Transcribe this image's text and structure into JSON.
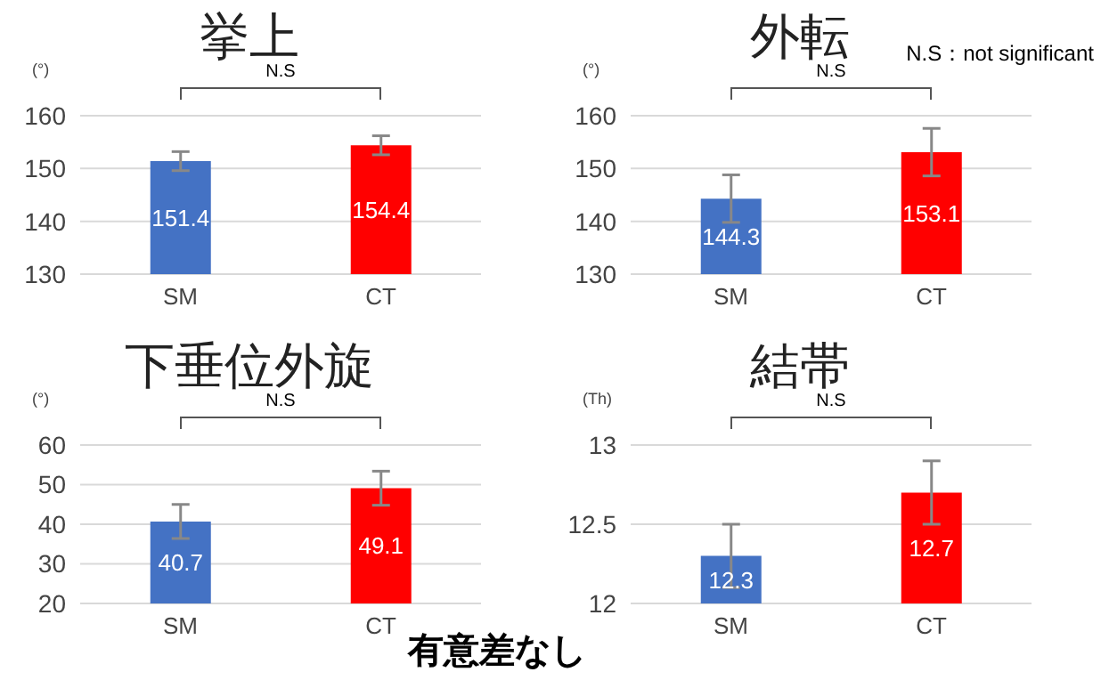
{
  "chart_data": [
    {
      "type": "bar",
      "title": "挙上",
      "ylabel": "(°)",
      "categories": [
        "SM",
        "CT"
      ],
      "values": [
        151.4,
        154.4
      ],
      "colors": [
        "#4472c4",
        "#ff0000"
      ],
      "errors": [
        1.8,
        1.8
      ],
      "ylim": [
        130,
        160
      ],
      "yticks": [
        130,
        140,
        150,
        160
      ],
      "grid": "y",
      "data_labels": true,
      "annotations": [
        "N.S"
      ]
    },
    {
      "type": "bar",
      "title": "外転",
      "ylabel": "(°)",
      "categories": [
        "SM",
        "CT"
      ],
      "values": [
        144.3,
        153.1
      ],
      "colors": [
        "#4472c4",
        "#ff0000"
      ],
      "errors": [
        4.5,
        4.5
      ],
      "ylim": [
        130,
        160
      ],
      "yticks": [
        130,
        140,
        150,
        160
      ],
      "grid": "y",
      "data_labels": true,
      "annotations": [
        "N.S",
        "N.S：not significant"
      ]
    },
    {
      "type": "bar",
      "title": "下垂位外旋",
      "ylabel": "(°)",
      "categories": [
        "SM",
        "CT"
      ],
      "values": [
        40.7,
        49.1
      ],
      "colors": [
        "#4472c4",
        "#ff0000"
      ],
      "errors": [
        4.3,
        4.3
      ],
      "ylim": [
        20,
        60
      ],
      "yticks": [
        20,
        30,
        40,
        50,
        60
      ],
      "grid": "y",
      "data_labels": true,
      "annotations": [
        "N.S"
      ]
    },
    {
      "type": "bar",
      "title": "結帯",
      "ylabel": "(Th)",
      "categories": [
        "SM",
        "CT"
      ],
      "values": [
        12.3,
        12.7
      ],
      "colors": [
        "#4472c4",
        "#ff0000"
      ],
      "errors": [
        0.2,
        0.2
      ],
      "ylim": [
        12,
        13
      ],
      "yticks": [
        12,
        {
          "value": 12.5,
          "label": "12.5"
        },
        13
      ],
      "grid": "y",
      "data_labels": true,
      "annotations": [
        "N.S",
        "有意差なし"
      ]
    }
  ]
}
